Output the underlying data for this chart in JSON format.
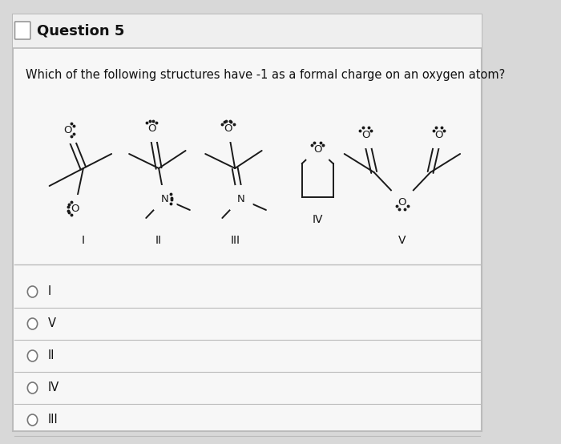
{
  "title": "Question 5",
  "question_text": "Which of the following structures have -1 as a formal charge on an oxygen atom?",
  "answer_choices": [
    "I",
    "V",
    "II",
    "IV",
    "III"
  ],
  "bg_outer": "#d8d8d8",
  "bg_card": "#f5f5f5",
  "bg_header": "#eeeeee",
  "divider_color": "#bbbbbb",
  "text_color": "#111111",
  "structure_labels": [
    "I",
    "II",
    "III",
    "IV",
    "V"
  ],
  "label_fontsize": 10,
  "question_fontsize": 10.5,
  "title_fontsize": 13
}
